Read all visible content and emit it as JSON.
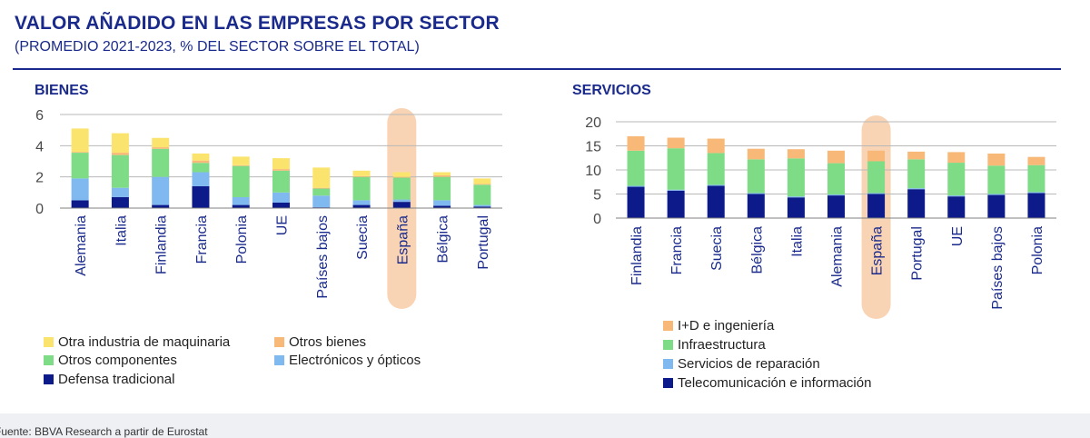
{
  "header": {
    "title": "VALOR AÑADIDO EN LAS EMPRESAS POR SECTOR",
    "subtitle": "(PROMEDIO 2021-2023, % DEL SECTOR SOBRE EL TOTAL)"
  },
  "footer": {
    "source": "Fuente: BBVA Research a partir de Eurostat"
  },
  "chart_data": [
    {
      "type": "bar",
      "stacked": true,
      "title": "BIENES",
      "ylim": [
        0,
        6
      ],
      "yticks": [
        0,
        2,
        4,
        6
      ],
      "grid": true,
      "highlight": "España",
      "highlight_color": "#f9d4b4",
      "categories": [
        "Alemania",
        "Italia",
        "Finlandia",
        "Francia",
        "Polonia",
        "UE",
        "Países bajos",
        "Suecia",
        "España",
        "Bélgica",
        "Portugal"
      ],
      "series": [
        {
          "name": "Defensa tradicional",
          "color": "#0d1a8a",
          "values": [
            0.5,
            0.7,
            0.2,
            1.4,
            0.2,
            0.35,
            0.05,
            0.2,
            0.4,
            0.15,
            0.1
          ]
        },
        {
          "name": "Electrónicos y ópticos",
          "color": "#80b8f0",
          "values": [
            1.4,
            0.6,
            1.8,
            0.9,
            0.5,
            0.65,
            0.75,
            0.3,
            0.15,
            0.35,
            0.1
          ]
        },
        {
          "name": "Otros componentes",
          "color": "#7fdc86",
          "values": [
            1.65,
            2.1,
            1.8,
            0.6,
            2.0,
            1.4,
            0.45,
            1.5,
            1.4,
            1.5,
            1.3
          ]
        },
        {
          "name": "Otros bienes",
          "color": "#f7b878",
          "values": [
            0.05,
            0.15,
            0.1,
            0.15,
            0.05,
            0.1,
            0.05,
            0.05,
            0.05,
            0.1,
            0.05
          ]
        },
        {
          "name": "Otra industria de maquinaria",
          "color": "#fbe46e",
          "values": [
            1.5,
            1.25,
            0.6,
            0.45,
            0.55,
            0.7,
            1.3,
            0.35,
            0.3,
            0.2,
            0.35
          ]
        }
      ],
      "legend_position": "bottom",
      "legend_order": [
        "Otra industria de maquinaria",
        "Otros bienes",
        "Otros componentes",
        "Electrónicos y ópticos",
        "Defensa tradicional"
      ]
    },
    {
      "type": "bar",
      "stacked": true,
      "title": "SERVICIOS",
      "ylim": [
        0,
        20
      ],
      "yticks": [
        0,
        5,
        10,
        15,
        20
      ],
      "grid": true,
      "highlight": "España",
      "highlight_color": "#f9d4b4",
      "categories": [
        "Finlandia",
        "Francia",
        "Suecia",
        "Bélgica",
        "Italia",
        "Alemania",
        "España",
        "Portugal",
        "UE",
        "Países bajos",
        "Polonia"
      ],
      "series": [
        {
          "name": "Telecomunicación e información",
          "color": "#0d1a8a",
          "values": [
            6.5,
            5.7,
            6.7,
            5.0,
            4.3,
            4.7,
            5.0,
            6.0,
            4.5,
            4.8,
            5.2
          ]
        },
        {
          "name": "Servicios de reparación",
          "color": "#80b8f0",
          "values": [
            0.2,
            0.2,
            0.2,
            0.2,
            0.2,
            0.2,
            0.2,
            0.2,
            0.2,
            0.2,
            0.2
          ]
        },
        {
          "name": "Infraestructura",
          "color": "#7fdc86",
          "values": [
            7.3,
            8.6,
            6.6,
            7.0,
            7.9,
            6.5,
            6.6,
            6.0,
            6.8,
            5.9,
            5.6
          ]
        },
        {
          "name": "I+D e ingeniería",
          "color": "#f7b878",
          "values": [
            3.0,
            2.2,
            3.0,
            2.2,
            1.9,
            2.6,
            2.2,
            1.6,
            2.2,
            2.5,
            1.7
          ]
        }
      ],
      "legend_position": "bottom",
      "legend_order": [
        "I+D e ingeniería",
        "Infraestructura",
        "Servicios de reparación",
        "Telecomunicación e información"
      ]
    }
  ]
}
